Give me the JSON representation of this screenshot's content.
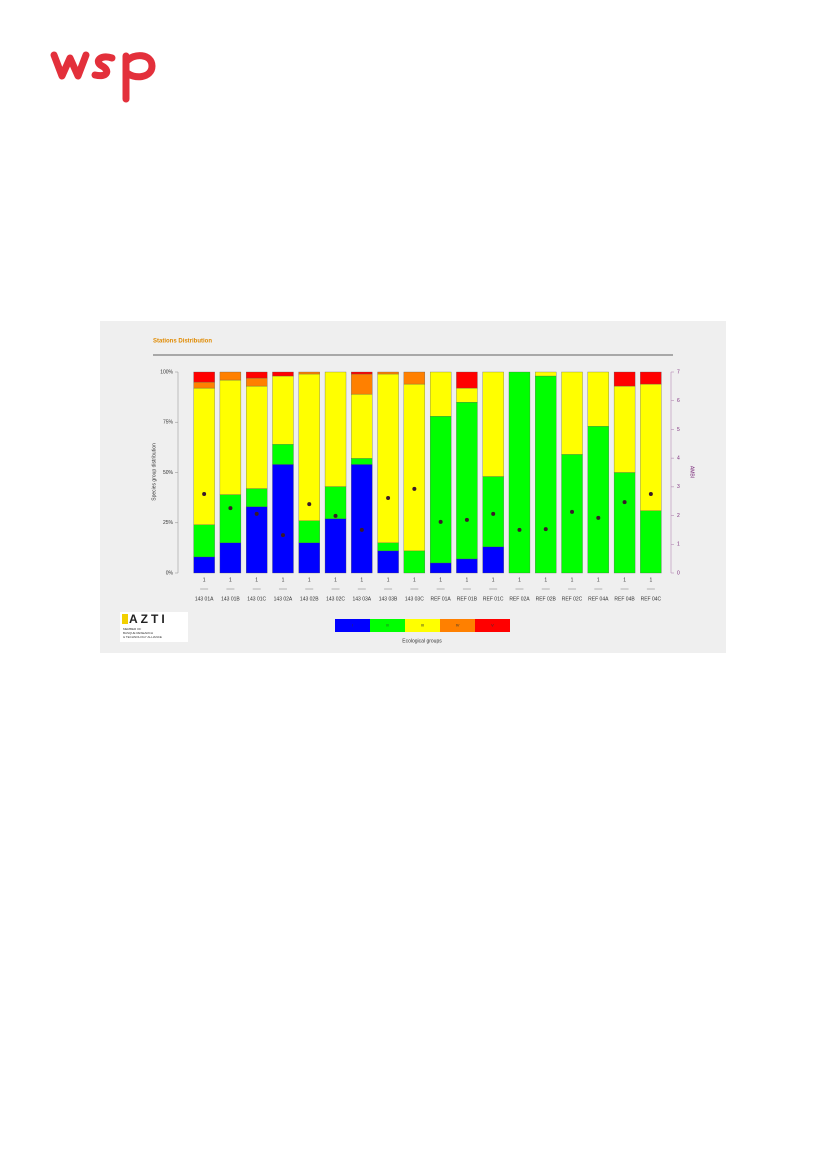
{
  "chart_data": {
    "type": "bar",
    "stacked": true,
    "title": "Stations Distribution",
    "y_label": "Species group distribution",
    "legend_title": "Ecological groups",
    "x_top_labels": [
      "1",
      "1",
      "1",
      "1",
      "1",
      "1",
      "1",
      "1",
      "1",
      "1",
      "1",
      "1",
      "1",
      "1",
      "1",
      "1",
      "1",
      "1"
    ],
    "categories": [
      "143 01A",
      "143 01B",
      "143 01C",
      "143 02A",
      "143 02B",
      "143 02C",
      "143 03A",
      "143 03B",
      "143 03C",
      "REF 01A",
      "REF 01B",
      "REF 01C",
      "REF 02A",
      "REF 02B",
      "REF 02C",
      "REF 04A",
      "REF 04B",
      "REF 04C"
    ],
    "series": [
      {
        "name": "I",
        "color": "#0000ff",
        "values": [
          8,
          15,
          33,
          54,
          15,
          27,
          54,
          11,
          0,
          5,
          7,
          13,
          0,
          0,
          0,
          0,
          0,
          0
        ]
      },
      {
        "name": "II",
        "color": "#00ff00",
        "values": [
          16,
          24,
          9,
          10,
          11,
          16,
          3,
          4,
          11,
          73,
          78,
          35,
          100,
          98,
          59,
          73,
          50,
          31
        ]
      },
      {
        "name": "III",
        "color": "#ffff00",
        "values": [
          68,
          57,
          51,
          34,
          73,
          57,
          32,
          84,
          83,
          22,
          7,
          52,
          0,
          2,
          41,
          27,
          43,
          63
        ]
      },
      {
        "name": "IV",
        "color": "#ff8000",
        "values": [
          3,
          4,
          4,
          0,
          1,
          0,
          10,
          1,
          6,
          0,
          0,
          0,
          0,
          0,
          0,
          0,
          0,
          0
        ]
      },
      {
        "name": "V",
        "color": "#ff0000",
        "values": [
          5,
          0,
          3,
          2,
          0,
          0,
          1,
          0,
          0,
          0,
          8,
          0,
          0,
          0,
          0,
          0,
          7,
          6
        ]
      },
      {
        "name": "AMBI",
        "axis": "y2",
        "type": "scatter",
        "color": "#3a1a2a",
        "values": [
          2.75,
          2.26,
          2.06,
          1.32,
          2.4,
          1.99,
          1.5,
          2.61,
          2.93,
          1.78,
          1.85,
          2.06,
          1.5,
          1.53,
          2.13,
          1.92,
          2.47,
          2.75
        ]
      }
    ],
    "ylim": [
      0,
      100
    ],
    "yticks": [
      {
        "value": 0,
        "label": "0%"
      },
      {
        "value": 25,
        "label": "25%"
      },
      {
        "value": 50,
        "label": "50%"
      },
      {
        "value": 75,
        "label": "75%"
      },
      {
        "value": 100,
        "label": "100%"
      }
    ],
    "y2lim": [
      0,
      7
    ],
    "y2ticks": [
      0,
      1,
      2,
      3,
      4,
      5,
      6,
      7
    ],
    "y2_color": "#7a2a7a",
    "title_color": "#e08a00"
  },
  "azti_logo": {
    "name": "AZTI",
    "tagline": [
      "MEMBER OF",
      "BASQUE RESEARCH",
      "& TECHNOLOGY ALLIANCE"
    ]
  }
}
